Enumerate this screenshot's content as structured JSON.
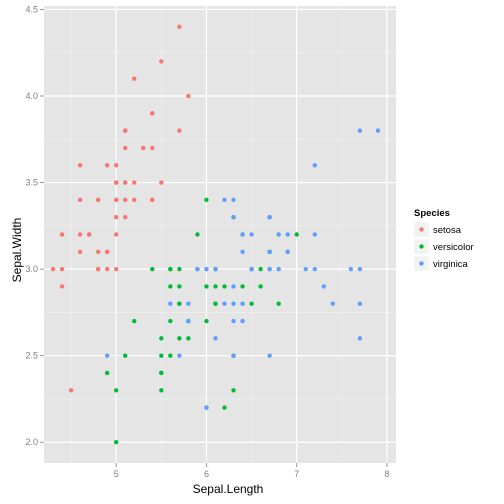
{
  "chart_data": {
    "type": "scatter",
    "xlabel": "Sepal.Length",
    "ylabel": "Sepal.Width",
    "xlim": [
      4.2,
      8.1
    ],
    "ylim": [
      1.88,
      4.52
    ],
    "x_ticks": [
      5,
      6,
      7,
      8
    ],
    "y_ticks": [
      2.0,
      2.5,
      3.0,
      3.5,
      4.0,
      4.5
    ],
    "x_tick_labels": [
      "5",
      "6",
      "7",
      "8"
    ],
    "y_tick_labels": [
      "2.0",
      "2.5",
      "3.0",
      "3.5",
      "4.0",
      "4.5"
    ],
    "grid": true,
    "legend_title": "Species",
    "legend_position": "right",
    "series": [
      {
        "name": "setosa",
        "color": "#F8766D",
        "points": [
          [
            5.1,
            3.5
          ],
          [
            4.9,
            3.0
          ],
          [
            4.7,
            3.2
          ],
          [
            4.6,
            3.1
          ],
          [
            5.0,
            3.6
          ],
          [
            5.4,
            3.9
          ],
          [
            4.6,
            3.4
          ],
          [
            5.0,
            3.4
          ],
          [
            4.4,
            2.9
          ],
          [
            4.9,
            3.1
          ],
          [
            5.4,
            3.7
          ],
          [
            4.8,
            3.4
          ],
          [
            4.8,
            3.0
          ],
          [
            4.3,
            3.0
          ],
          [
            5.8,
            4.0
          ],
          [
            5.7,
            4.4
          ],
          [
            5.4,
            3.9
          ],
          [
            5.1,
            3.5
          ],
          [
            5.7,
            3.8
          ],
          [
            5.1,
            3.8
          ],
          [
            5.4,
            3.4
          ],
          [
            5.1,
            3.7
          ],
          [
            4.6,
            3.6
          ],
          [
            5.1,
            3.3
          ],
          [
            4.8,
            3.4
          ],
          [
            5.0,
            3.0
          ],
          [
            5.0,
            3.4
          ],
          [
            5.2,
            3.5
          ],
          [
            5.2,
            3.4
          ],
          [
            4.7,
            3.2
          ],
          [
            4.8,
            3.1
          ],
          [
            5.4,
            3.4
          ],
          [
            5.2,
            4.1
          ],
          [
            5.5,
            4.2
          ],
          [
            4.9,
            3.1
          ],
          [
            5.0,
            3.2
          ],
          [
            5.5,
            3.5
          ],
          [
            4.9,
            3.6
          ],
          [
            4.4,
            3.0
          ],
          [
            5.1,
            3.4
          ],
          [
            5.0,
            3.5
          ],
          [
            4.5,
            2.3
          ],
          [
            4.4,
            3.2
          ],
          [
            5.0,
            3.5
          ],
          [
            5.1,
            3.8
          ],
          [
            4.8,
            3.0
          ],
          [
            5.1,
            3.8
          ],
          [
            4.6,
            3.2
          ],
          [
            5.3,
            3.7
          ],
          [
            5.0,
            3.3
          ]
        ]
      },
      {
        "name": "versicolor",
        "color": "#00BA38",
        "points": [
          [
            7.0,
            3.2
          ],
          [
            6.4,
            3.2
          ],
          [
            6.9,
            3.1
          ],
          [
            5.5,
            2.3
          ],
          [
            6.5,
            2.8
          ],
          [
            5.7,
            2.8
          ],
          [
            6.3,
            3.3
          ],
          [
            4.9,
            2.4
          ],
          [
            6.6,
            2.9
          ],
          [
            5.2,
            2.7
          ],
          [
            5.0,
            2.0
          ],
          [
            5.9,
            3.0
          ],
          [
            6.0,
            2.2
          ],
          [
            6.1,
            2.9
          ],
          [
            5.6,
            2.9
          ],
          [
            6.7,
            3.1
          ],
          [
            5.6,
            3.0
          ],
          [
            5.8,
            2.7
          ],
          [
            6.2,
            2.2
          ],
          [
            5.6,
            2.5
          ],
          [
            5.9,
            3.2
          ],
          [
            6.1,
            2.8
          ],
          [
            6.3,
            2.5
          ],
          [
            6.1,
            2.8
          ],
          [
            6.4,
            2.9
          ],
          [
            6.6,
            3.0
          ],
          [
            6.8,
            2.8
          ],
          [
            6.7,
            3.0
          ],
          [
            6.0,
            2.9
          ],
          [
            5.7,
            2.6
          ],
          [
            5.5,
            2.4
          ],
          [
            5.5,
            2.4
          ],
          [
            5.8,
            2.7
          ],
          [
            6.0,
            2.7
          ],
          [
            5.4,
            3.0
          ],
          [
            6.0,
            3.4
          ],
          [
            6.7,
            3.1
          ],
          [
            6.3,
            2.3
          ],
          [
            5.6,
            3.0
          ],
          [
            5.5,
            2.5
          ],
          [
            5.5,
            2.6
          ],
          [
            6.1,
            3.0
          ],
          [
            5.8,
            2.6
          ],
          [
            5.0,
            2.3
          ],
          [
            5.6,
            2.7
          ],
          [
            5.7,
            3.0
          ],
          [
            5.7,
            2.9
          ],
          [
            6.2,
            2.9
          ],
          [
            5.1,
            2.5
          ],
          [
            5.7,
            2.8
          ]
        ]
      },
      {
        "name": "virginica",
        "color": "#619CFF",
        "points": [
          [
            6.3,
            3.3
          ],
          [
            5.8,
            2.7
          ],
          [
            7.1,
            3.0
          ],
          [
            6.3,
            2.9
          ],
          [
            6.5,
            3.0
          ],
          [
            7.6,
            3.0
          ],
          [
            4.9,
            2.5
          ],
          [
            7.3,
            2.9
          ],
          [
            6.7,
            2.5
          ],
          [
            7.2,
            3.6
          ],
          [
            6.5,
            3.2
          ],
          [
            6.4,
            2.7
          ],
          [
            6.8,
            3.0
          ],
          [
            5.7,
            2.5
          ],
          [
            5.8,
            2.8
          ],
          [
            6.4,
            3.2
          ],
          [
            6.5,
            3.0
          ],
          [
            7.7,
            3.8
          ],
          [
            7.7,
            2.6
          ],
          [
            6.0,
            2.2
          ],
          [
            6.9,
            3.2
          ],
          [
            5.6,
            2.8
          ],
          [
            7.7,
            2.8
          ],
          [
            6.3,
            2.7
          ],
          [
            6.7,
            3.3
          ],
          [
            7.2,
            3.2
          ],
          [
            6.2,
            2.8
          ],
          [
            6.1,
            3.0
          ],
          [
            6.4,
            2.8
          ],
          [
            7.2,
            3.0
          ],
          [
            7.4,
            2.8
          ],
          [
            7.9,
            3.8
          ],
          [
            6.4,
            2.8
          ],
          [
            6.3,
            2.8
          ],
          [
            6.1,
            2.6
          ],
          [
            7.7,
            3.0
          ],
          [
            6.3,
            3.4
          ],
          [
            6.4,
            3.1
          ],
          [
            6.0,
            3.0
          ],
          [
            6.9,
            3.1
          ],
          [
            6.7,
            3.1
          ],
          [
            6.9,
            3.1
          ],
          [
            5.8,
            2.7
          ],
          [
            6.8,
            3.2
          ],
          [
            6.7,
            3.3
          ],
          [
            6.7,
            3.0
          ],
          [
            6.3,
            2.5
          ],
          [
            6.5,
            3.0
          ],
          [
            6.2,
            3.4
          ],
          [
            5.9,
            3.0
          ]
        ]
      }
    ]
  }
}
